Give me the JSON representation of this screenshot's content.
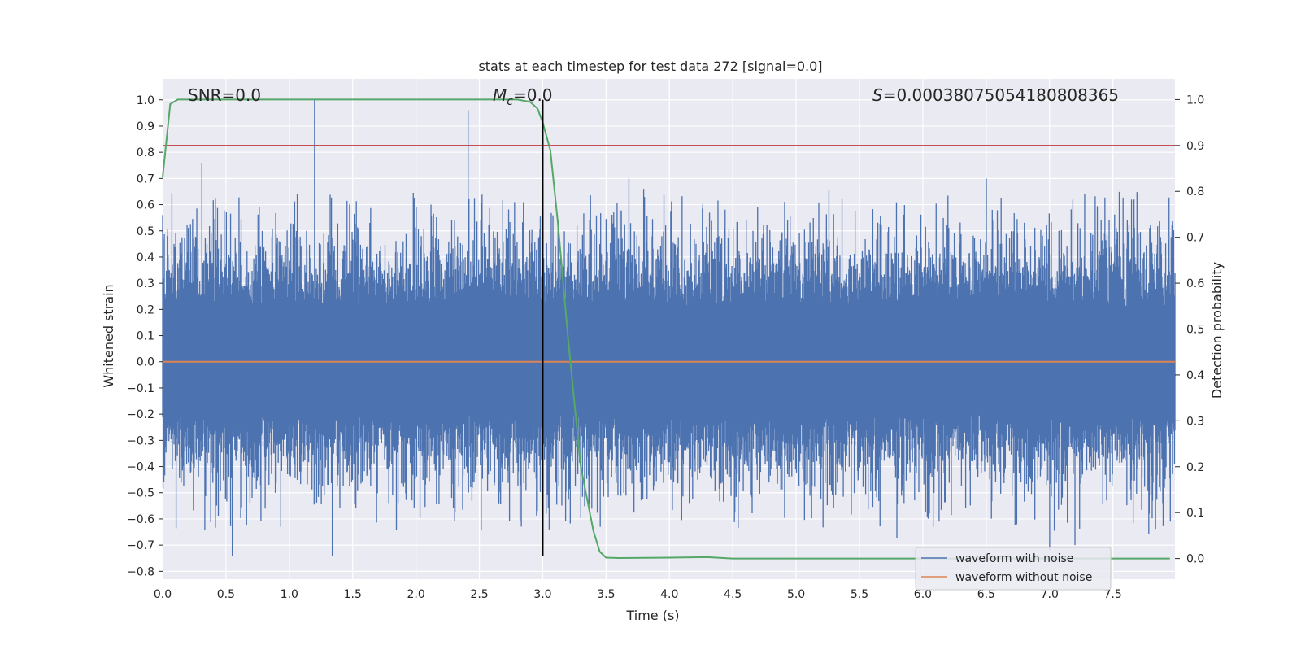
{
  "chart_data": {
    "type": "line",
    "title": "stats at each timestep for test data 272 [signal=0.0]",
    "xlabel": "Time (s)",
    "ylabel_left": "Whitened strain",
    "ylabel_right": "Detection probability",
    "xlim": [
      0.0,
      7.99
    ],
    "ylim_left": [
      -0.83,
      1.08
    ],
    "ylim_right": [
      -0.045,
      1.045
    ],
    "x_ticks": [
      0.0,
      0.5,
      1.0,
      1.5,
      2.0,
      2.5,
      3.0,
      3.5,
      4.0,
      4.5,
      5.0,
      5.5,
      6.0,
      6.5,
      7.0,
      7.5
    ],
    "x_tick_labels": [
      "0.0",
      "0.5",
      "1.0",
      "1.5",
      "2.0",
      "2.5",
      "3.0",
      "3.5",
      "4.0",
      "4.5",
      "5.0",
      "5.5",
      "6.0",
      "6.5",
      "7.0",
      "7.5"
    ],
    "y_left_ticks": [
      1.0,
      0.9,
      0.8,
      0.7,
      0.6,
      0.5,
      0.4,
      0.3,
      0.2,
      0.1,
      0.0,
      -0.1,
      -0.2,
      -0.3,
      -0.4,
      -0.5,
      -0.6,
      -0.7,
      -0.8
    ],
    "y_left_tick_labels": [
      "1.0",
      "0.9",
      "0.8",
      "0.7",
      "0.6",
      "0.5",
      "0.4",
      "0.3",
      "0.2",
      "0.1",
      "0.0",
      "−0.1",
      "−0.2",
      "−0.3",
      "−0.4",
      "−0.5",
      "−0.6",
      "−0.7",
      "−0.8"
    ],
    "y_right_ticks": [
      1.0,
      0.9,
      0.8,
      0.7,
      0.6,
      0.5,
      0.4,
      0.3,
      0.2,
      0.1,
      0.0
    ],
    "y_right_tick_labels": [
      "1.0",
      "0.9",
      "0.8",
      "0.7",
      "0.6",
      "0.5",
      "0.4",
      "0.3",
      "0.2",
      "0.1",
      "0.0"
    ],
    "grid": true,
    "legend_position": "lower-right",
    "series": [
      {
        "name": "waveform with noise",
        "axis": "left",
        "color": "#4c72b0",
        "style": "dense-noise",
        "envelope_typical": [
          -0.45,
          0.47
        ],
        "peaks": [
          {
            "x": 1.2,
            "y": 1.0
          },
          {
            "x": 2.41,
            "y": 0.96
          },
          {
            "x": 0.31,
            "y": 0.76
          },
          {
            "x": 6.5,
            "y": 0.7
          },
          {
            "x": 3.68,
            "y": 0.7
          },
          {
            "x": 0.55,
            "y": -0.74
          },
          {
            "x": 1.34,
            "y": -0.74
          },
          {
            "x": 7.0,
            "y": -0.72
          },
          {
            "x": 7.2,
            "y": -0.7
          }
        ]
      },
      {
        "name": "waveform without noise",
        "axis": "left",
        "color": "#dd8452",
        "x": [
          0.0,
          7.99
        ],
        "y": [
          0.0,
          0.0
        ]
      },
      {
        "name": "",
        "axis": "right",
        "color": "#55a868",
        "x": [
          0.0,
          0.06,
          0.12,
          0.2,
          0.5,
          1.0,
          1.5,
          2.0,
          2.5,
          2.8,
          2.9,
          2.96,
          3.0,
          3.06,
          3.12,
          3.2,
          3.3,
          3.4,
          3.45,
          3.5,
          3.6,
          4.0,
          4.3,
          4.5,
          5.0,
          6.0,
          7.0,
          7.95
        ],
        "y": [
          0.83,
          0.99,
          1.0,
          1.0,
          1.0,
          1.0,
          1.0,
          1.0,
          1.0,
          1.0,
          0.995,
          0.98,
          0.95,
          0.89,
          0.73,
          0.48,
          0.2,
          0.06,
          0.015,
          0.002,
          0.001,
          0.002,
          0.003,
          0.0,
          0.0,
          0.0,
          0.0,
          0.0
        ]
      }
    ],
    "threshold": {
      "axis": "right",
      "y": 0.9,
      "color": "#c44e52"
    },
    "marker_line": {
      "x": 3.0,
      "y_from": -0.74,
      "y_to": 1.0,
      "color": "#000000"
    },
    "annotations": {
      "snr": "SNR=0.0",
      "mc_symbol": "M",
      "mc_subscript": "c",
      "mc_value": "=0.0",
      "s_symbol": "S",
      "s_value": "=0.00038075054180808365"
    }
  }
}
